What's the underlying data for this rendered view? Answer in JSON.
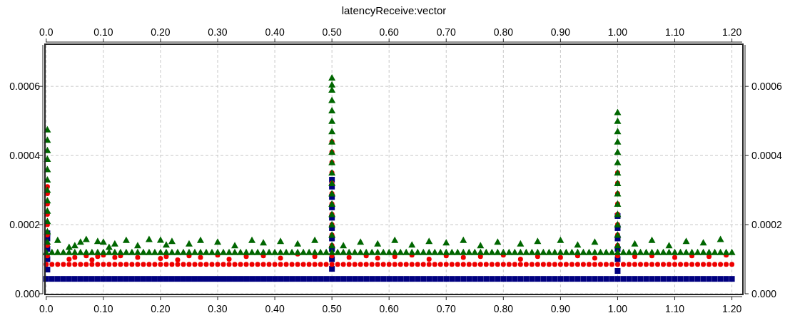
{
  "chart_data": {
    "type": "scatter",
    "title": "latencyReceive:vector",
    "xlim": [
      -0.001,
      1.218
    ],
    "ylim": [
      0,
      0.00072
    ],
    "xticks": [
      {
        "value": 0,
        "label": "0.0"
      },
      {
        "value": 0.1,
        "label": "0.10"
      },
      {
        "value": 0.2,
        "label": "0.20"
      },
      {
        "value": 0.3,
        "label": "0.30"
      },
      {
        "value": 0.4,
        "label": "0.40"
      },
      {
        "value": 0.5,
        "label": "0.50"
      },
      {
        "value": 0.6,
        "label": "0.60"
      },
      {
        "value": 0.7,
        "label": "0.70"
      },
      {
        "value": 0.8,
        "label": "0.80"
      },
      {
        "value": 0.9,
        "label": "0.90"
      },
      {
        "value": 1,
        "label": "1.00"
      },
      {
        "value": 1.1,
        "label": "1.10"
      },
      {
        "value": 1.2,
        "label": "1.20"
      }
    ],
    "x2lim": [
      -0.001,
      1.218
    ],
    "x2ticks": [
      {
        "value": 0,
        "label": "0.0"
      },
      {
        "value": 0.1,
        "label": "0.10"
      },
      {
        "value": 0.2,
        "label": "0.20"
      },
      {
        "value": 0.3,
        "label": "0.30"
      },
      {
        "value": 0.4,
        "label": "0.40"
      },
      {
        "value": 0.5,
        "label": "0.50"
      },
      {
        "value": 0.6,
        "label": "0.60"
      },
      {
        "value": 0.7,
        "label": "0.70"
      },
      {
        "value": 0.8,
        "label": "0.80"
      },
      {
        "value": 0.9,
        "label": "0.90"
      },
      {
        "value": 1,
        "label": "1.00"
      },
      {
        "value": 1.1,
        "label": "1.10"
      },
      {
        "value": 1.2,
        "label": "1.20"
      }
    ],
    "yticks": [
      {
        "value": 0,
        "label": "0.000"
      },
      0.0002,
      0.0004,
      0.0006
    ],
    "y2lim": [
      0,
      0.00072
    ],
    "y2ticks": [
      {
        "value": 0,
        "label": "0.000"
      },
      0.0002,
      0.0004,
      0.0006
    ],
    "grid": true,
    "series": [
      {
        "color": "#000080",
        "marker": "square",
        "x": [
          0,
          0.01,
          0.02,
          0.03,
          0.04,
          0.05,
          0.06,
          0.07,
          0.08,
          0.09,
          0.1,
          0.11,
          0.12,
          0.13,
          0.14,
          0.15,
          0.16,
          0.17,
          0.18,
          0.19,
          0.2,
          0.21,
          0.22,
          0.23,
          0.24,
          0.25,
          0.26,
          0.27,
          0.28,
          0.29,
          0.3,
          0.31,
          0.32,
          0.33,
          0.34,
          0.35,
          0.36,
          0.37,
          0.38,
          0.39,
          0.4,
          0.41,
          0.42,
          0.43,
          0.44,
          0.45,
          0.46,
          0.47,
          0.48,
          0.49,
          0.5,
          0.51,
          0.52,
          0.53,
          0.54,
          0.55,
          0.56,
          0.57,
          0.58,
          0.59,
          0.6,
          0.61,
          0.62,
          0.63,
          0.64,
          0.65,
          0.66,
          0.67,
          0.68,
          0.69,
          0.7,
          0.71,
          0.72,
          0.73,
          0.74,
          0.75,
          0.76,
          0.77,
          0.78,
          0.79,
          0.8,
          0.81,
          0.82,
          0.83,
          0.84,
          0.85,
          0.86,
          0.87,
          0.88,
          0.89,
          0.9,
          0.91,
          0.92,
          0.93,
          0.94,
          0.95,
          0.96,
          0.97,
          0.98,
          0.99,
          1,
          1.01,
          1.02,
          1.03,
          1.04,
          1.05,
          1.06,
          1.07,
          1.08,
          1.09,
          1.1,
          1.11,
          1.12,
          1.13,
          1.14,
          1.15,
          1.16,
          1.17,
          1.18,
          1.19,
          1.2,
          0.002,
          0.002,
          0.002,
          0.002,
          0.002,
          0.5,
          0.5,
          0.5,
          0.5,
          0.5,
          0.5,
          0.5,
          0.5,
          0.5,
          0.5,
          1.0,
          1.0,
          1.0,
          1.0,
          1.0,
          1.0
        ],
        "values": [
          4.3e-05,
          4.3e-05,
          4.3e-05,
          4.3e-05,
          4.3e-05,
          4.3e-05,
          4.3e-05,
          4.3e-05,
          4.3e-05,
          4.3e-05,
          4.3e-05,
          4.3e-05,
          4.3e-05,
          4.3e-05,
          4.3e-05,
          4.3e-05,
          4.3e-05,
          4.3e-05,
          4.3e-05,
          4.3e-05,
          4.3e-05,
          4.3e-05,
          4.3e-05,
          4.3e-05,
          4.3e-05,
          4.3e-05,
          4.3e-05,
          4.3e-05,
          4.3e-05,
          4.3e-05,
          4.3e-05,
          4.3e-05,
          4.3e-05,
          4.3e-05,
          4.3e-05,
          4.3e-05,
          4.3e-05,
          4.3e-05,
          4.3e-05,
          4.3e-05,
          4.3e-05,
          4.3e-05,
          4.3e-05,
          4.3e-05,
          4.3e-05,
          4.3e-05,
          4.3e-05,
          4.3e-05,
          4.3e-05,
          4.3e-05,
          4.3e-05,
          4.3e-05,
          4.3e-05,
          4.3e-05,
          4.3e-05,
          4.3e-05,
          4.3e-05,
          4.3e-05,
          4.3e-05,
          4.3e-05,
          4.3e-05,
          4.3e-05,
          4.3e-05,
          4.3e-05,
          4.3e-05,
          4.3e-05,
          4.3e-05,
          4.3e-05,
          4.3e-05,
          4.3e-05,
          4.3e-05,
          4.3e-05,
          4.3e-05,
          4.3e-05,
          4.3e-05,
          4.3e-05,
          4.3e-05,
          4.3e-05,
          4.3e-05,
          4.3e-05,
          4.3e-05,
          4.3e-05,
          4.3e-05,
          4.3e-05,
          4.3e-05,
          4.3e-05,
          4.3e-05,
          4.3e-05,
          4.3e-05,
          4.3e-05,
          4.3e-05,
          4.3e-05,
          4.3e-05,
          4.3e-05,
          4.3e-05,
          4.3e-05,
          4.3e-05,
          4.3e-05,
          4.3e-05,
          4.3e-05,
          4.3e-05,
          4.3e-05,
          4.3e-05,
          4.3e-05,
          4.3e-05,
          4.3e-05,
          4.3e-05,
          4.3e-05,
          4.3e-05,
          4.3e-05,
          4.3e-05,
          4.3e-05,
          4.3e-05,
          4.3e-05,
          4.3e-05,
          4.3e-05,
          4.3e-05,
          4.3e-05,
          4.3e-05,
          4.3e-05,
          4.3e-05,
          7e-05,
          0.0001,
          0.00013,
          0.00016,
          0.000175,
          7.2e-05,
          0.0001,
          0.00013,
          0.00016,
          0.00019,
          0.00022,
          0.00025,
          0.00028,
          0.00031,
          0.00033,
          6.6e-05,
          0.0001,
          0.00013,
          0.00016,
          0.00019,
          0.000225
        ]
      },
      {
        "color": "#ee0000",
        "marker": "circle",
        "x": [
          0,
          0.01,
          0.02,
          0.03,
          0.04,
          0.05,
          0.06,
          0.07,
          0.08,
          0.09,
          0.1,
          0.11,
          0.12,
          0.13,
          0.14,
          0.15,
          0.16,
          0.17,
          0.18,
          0.19,
          0.2,
          0.21,
          0.22,
          0.23,
          0.24,
          0.25,
          0.26,
          0.27,
          0.28,
          0.29,
          0.3,
          0.31,
          0.32,
          0.33,
          0.34,
          0.35,
          0.36,
          0.37,
          0.38,
          0.39,
          0.4,
          0.41,
          0.42,
          0.43,
          0.44,
          0.45,
          0.46,
          0.47,
          0.48,
          0.49,
          0.5,
          0.51,
          0.52,
          0.53,
          0.54,
          0.55,
          0.56,
          0.57,
          0.58,
          0.59,
          0.6,
          0.61,
          0.62,
          0.63,
          0.64,
          0.65,
          0.66,
          0.67,
          0.68,
          0.69,
          0.7,
          0.71,
          0.72,
          0.73,
          0.74,
          0.75,
          0.76,
          0.77,
          0.78,
          0.79,
          0.8,
          0.81,
          0.82,
          0.83,
          0.84,
          0.85,
          0.86,
          0.87,
          0.88,
          0.89,
          0.9,
          0.91,
          0.92,
          0.93,
          0.94,
          0.95,
          0.96,
          0.97,
          0.98,
          0.99,
          1,
          1.01,
          1.02,
          1.03,
          1.04,
          1.05,
          1.06,
          1.07,
          1.08,
          1.09,
          1.1,
          1.11,
          1.12,
          1.13,
          1.14,
          1.15,
          1.16,
          1.17,
          1.18,
          1.19,
          1.2,
          0.04,
          0.05,
          0.07,
          0.08,
          0.09,
          0.1,
          0.12,
          0.13,
          0.16,
          0.2,
          0.21,
          0.23,
          0.25,
          0.27,
          0.3,
          0.32,
          0.35,
          0.38,
          0.41,
          0.44,
          0.47,
          0.53,
          0.56,
          0.58,
          0.61,
          0.64,
          0.67,
          0.7,
          0.73,
          0.76,
          0.8,
          0.83,
          0.86,
          0.9,
          0.93,
          0.96,
          1.03,
          1.06,
          1.1,
          1.13,
          1.16,
          1.19,
          0.002,
          0.002,
          0.002,
          0.002,
          0.002,
          0.002,
          0.002,
          0.002,
          0.5,
          0.5,
          0.5,
          0.5,
          0.5,
          0.5,
          0.5,
          0.5,
          0.5,
          0.5,
          0.5,
          0.5,
          1.0,
          1.0,
          1.0,
          1.0,
          1.0,
          1.0,
          1.0,
          1.0,
          1.0
        ],
        "values": [
          8.5e-05,
          8.5e-05,
          8.5e-05,
          8.5e-05,
          8.5e-05,
          8.5e-05,
          8.5e-05,
          8.5e-05,
          8.5e-05,
          8.5e-05,
          8.5e-05,
          8.5e-05,
          8.5e-05,
          8.5e-05,
          8.5e-05,
          8.5e-05,
          8.5e-05,
          8.5e-05,
          8.5e-05,
          8.5e-05,
          8.5e-05,
          8.5e-05,
          8.5e-05,
          8.5e-05,
          8.5e-05,
          8.5e-05,
          8.5e-05,
          8.5e-05,
          8.5e-05,
          8.5e-05,
          8.5e-05,
          8.5e-05,
          8.5e-05,
          8.5e-05,
          8.5e-05,
          8.5e-05,
          8.5e-05,
          8.5e-05,
          8.5e-05,
          8.5e-05,
          8.5e-05,
          8.5e-05,
          8.5e-05,
          8.5e-05,
          8.5e-05,
          8.5e-05,
          8.5e-05,
          8.5e-05,
          8.5e-05,
          8.5e-05,
          8.5e-05,
          8.5e-05,
          8.5e-05,
          8.5e-05,
          8.5e-05,
          8.5e-05,
          8.5e-05,
          8.5e-05,
          8.5e-05,
          8.5e-05,
          8.5e-05,
          8.5e-05,
          8.5e-05,
          8.5e-05,
          8.5e-05,
          8.5e-05,
          8.5e-05,
          8.5e-05,
          8.5e-05,
          8.5e-05,
          8.5e-05,
          8.5e-05,
          8.5e-05,
          8.5e-05,
          8.5e-05,
          8.5e-05,
          8.5e-05,
          8.5e-05,
          8.5e-05,
          8.5e-05,
          8.5e-05,
          8.5e-05,
          8.5e-05,
          8.5e-05,
          8.5e-05,
          8.5e-05,
          8.5e-05,
          8.5e-05,
          8.5e-05,
          8.5e-05,
          8.5e-05,
          8.5e-05,
          8.5e-05,
          8.5e-05,
          8.5e-05,
          8.5e-05,
          8.5e-05,
          8.5e-05,
          8.5e-05,
          8.5e-05,
          8.5e-05,
          8.5e-05,
          8.5e-05,
          8.5e-05,
          8.5e-05,
          8.5e-05,
          8.5e-05,
          8.5e-05,
          8.5e-05,
          8.5e-05,
          8.5e-05,
          8.5e-05,
          8.5e-05,
          8.5e-05,
          8.5e-05,
          8.5e-05,
          8.5e-05,
          8.5e-05,
          8.5e-05,
          8.5e-05,
          8.5e-05,
          0.0001,
          0.000105,
          0.00011,
          9.8e-05,
          0.000108,
          0.000112,
          0.000105,
          0.00011,
          0.000105,
          0.000102,
          0.000108,
          9.8e-05,
          0.00011,
          0.000105,
          0.000112,
          0.0001,
          0.000108,
          0.00011,
          0.000103,
          0.000115,
          0.000108,
          0.000105,
          0.00011,
          0.000103,
          0.000108,
          0.000112,
          0.0001,
          0.00011,
          0.000105,
          0.000108,
          0.000112,
          0.0001,
          0.000108,
          0.000105,
          0.00011,
          0.000103,
          0.000108,
          0.00011,
          0.000105,
          0.00011,
          0.000108,
          0.000112,
          0.00011,
          0.00014,
          0.00017,
          0.0002,
          0.00023,
          0.00026,
          0.00029,
          0.00031,
          0.00011,
          0.00014,
          0.00017,
          0.0002,
          0.00023,
          0.00026,
          0.00029,
          0.00032,
          0.00035,
          0.00038,
          0.00041,
          0.00044,
          0.00011,
          0.00014,
          0.00017,
          0.0002,
          0.00023,
          0.00026,
          0.00029,
          0.00032,
          0.00035
        ]
      },
      {
        "color": "#006600",
        "marker": "triangle",
        "x": [
          0,
          0.01,
          0.02,
          0.03,
          0.04,
          0.05,
          0.06,
          0.07,
          0.08,
          0.09,
          0.1,
          0.11,
          0.12,
          0.13,
          0.14,
          0.15,
          0.16,
          0.17,
          0.18,
          0.19,
          0.2,
          0.21,
          0.22,
          0.23,
          0.24,
          0.25,
          0.26,
          0.27,
          0.28,
          0.29,
          0.3,
          0.31,
          0.32,
          0.33,
          0.34,
          0.35,
          0.36,
          0.37,
          0.38,
          0.39,
          0.4,
          0.41,
          0.42,
          0.43,
          0.44,
          0.45,
          0.46,
          0.47,
          0.48,
          0.49,
          0.5,
          0.51,
          0.52,
          0.53,
          0.54,
          0.55,
          0.56,
          0.57,
          0.58,
          0.59,
          0.6,
          0.61,
          0.62,
          0.63,
          0.64,
          0.65,
          0.66,
          0.67,
          0.68,
          0.69,
          0.7,
          0.71,
          0.72,
          0.73,
          0.74,
          0.75,
          0.76,
          0.77,
          0.78,
          0.79,
          0.8,
          0.81,
          0.82,
          0.83,
          0.84,
          0.85,
          0.86,
          0.87,
          0.88,
          0.89,
          0.9,
          0.91,
          0.92,
          0.93,
          0.94,
          0.95,
          0.96,
          0.97,
          0.98,
          0.99,
          1,
          1.01,
          1.02,
          1.03,
          1.04,
          1.05,
          1.06,
          1.07,
          1.08,
          1.09,
          1.1,
          1.11,
          1.12,
          1.13,
          1.14,
          1.15,
          1.16,
          1.17,
          1.18,
          1.19,
          1.2,
          0.02,
          0.04,
          0.05,
          0.06,
          0.07,
          0.09,
          0.1,
          0.11,
          0.12,
          0.14,
          0.16,
          0.18,
          0.2,
          0.21,
          0.22,
          0.25,
          0.27,
          0.3,
          0.33,
          0.36,
          0.38,
          0.41,
          0.44,
          0.47,
          0.52,
          0.55,
          0.58,
          0.61,
          0.64,
          0.67,
          0.7,
          0.73,
          0.76,
          0.79,
          0.83,
          0.86,
          0.9,
          0.93,
          0.96,
          1.03,
          1.06,
          1.09,
          1.12,
          1.15,
          1.18,
          0.002,
          0.002,
          0.002,
          0.002,
          0.002,
          0.002,
          0.002,
          0.002,
          0.002,
          0.002,
          0.002,
          0.002,
          0.5,
          0.5,
          0.5,
          0.5,
          0.5,
          0.5,
          0.5,
          0.5,
          0.5,
          0.5,
          0.5,
          0.5,
          0.5,
          0.5,
          0.5,
          0.5,
          0.5,
          0.5,
          1.0,
          1.0,
          1.0,
          1.0,
          1.0,
          1.0,
          1.0,
          1.0,
          1.0,
          1.0,
          1.0,
          1.0,
          1.0,
          1.0
        ],
        "values": [
          0.00012,
          0.00012,
          0.00012,
          0.00012,
          0.00012,
          0.00012,
          0.00012,
          0.00012,
          0.00012,
          0.00012,
          0.00012,
          0.00012,
          0.00012,
          0.00012,
          0.00012,
          0.00012,
          0.00012,
          0.00012,
          0.00012,
          0.00012,
          0.00012,
          0.00012,
          0.00012,
          0.00012,
          0.00012,
          0.00012,
          0.00012,
          0.00012,
          0.00012,
          0.00012,
          0.00012,
          0.00012,
          0.00012,
          0.00012,
          0.00012,
          0.00012,
          0.00012,
          0.00012,
          0.00012,
          0.00012,
          0.00012,
          0.00012,
          0.00012,
          0.00012,
          0.00012,
          0.00012,
          0.00012,
          0.00012,
          0.00012,
          0.00012,
          0.00012,
          0.00012,
          0.00012,
          0.00012,
          0.00012,
          0.00012,
          0.00012,
          0.00012,
          0.00012,
          0.00012,
          0.00012,
          0.00012,
          0.00012,
          0.00012,
          0.00012,
          0.00012,
          0.00012,
          0.00012,
          0.00012,
          0.00012,
          0.00012,
          0.00012,
          0.00012,
          0.00012,
          0.00012,
          0.00012,
          0.00012,
          0.00012,
          0.00012,
          0.00012,
          0.00012,
          0.00012,
          0.00012,
          0.00012,
          0.00012,
          0.00012,
          0.00012,
          0.00012,
          0.00012,
          0.00012,
          0.00012,
          0.00012,
          0.00012,
          0.00012,
          0.00012,
          0.00012,
          0.00012,
          0.00012,
          0.00012,
          0.00012,
          0.00012,
          0.00012,
          0.00012,
          0.00012,
          0.00012,
          0.00012,
          0.00012,
          0.00012,
          0.00012,
          0.00012,
          0.00012,
          0.00012,
          0.00012,
          0.00012,
          0.00012,
          0.00012,
          0.00012,
          0.00012,
          0.00012,
          0.00012,
          0.00012,
          0.000155,
          0.000135,
          0.00014,
          0.00015,
          0.000158,
          0.000152,
          0.00015,
          0.000135,
          0.000145,
          0.000155,
          0.00014,
          0.000158,
          0.000156,
          0.000142,
          0.000152,
          0.000145,
          0.000155,
          0.00015,
          0.00014,
          0.000155,
          0.000148,
          0.000152,
          0.000145,
          0.000155,
          0.00014,
          0.00015,
          0.000145,
          0.000155,
          0.000142,
          0.000152,
          0.000148,
          0.000155,
          0.00014,
          0.00015,
          0.000145,
          0.000152,
          0.000155,
          0.000142,
          0.00015,
          0.000145,
          0.000155,
          0.00014,
          0.000152,
          0.000148,
          0.000158,
          0.00015,
          0.00018,
          0.00021,
          0.00024,
          0.00027,
          0.0003,
          0.00033,
          0.00036,
          0.00039,
          0.000415,
          0.000445,
          0.000475,
          0.00014,
          0.00017,
          0.0002,
          0.00023,
          0.00026,
          0.00029,
          0.00032,
          0.00035,
          0.00038,
          0.00041,
          0.00044,
          0.00047,
          0.0005,
          0.00053,
          0.00056,
          0.00059,
          0.000605,
          0.000625,
          0.00014,
          0.00017,
          0.0002,
          0.00023,
          0.00026,
          0.00029,
          0.00032,
          0.00035,
          0.00038,
          0.00041,
          0.00044,
          0.00047,
          0.0005,
          0.000525
        ]
      }
    ]
  }
}
